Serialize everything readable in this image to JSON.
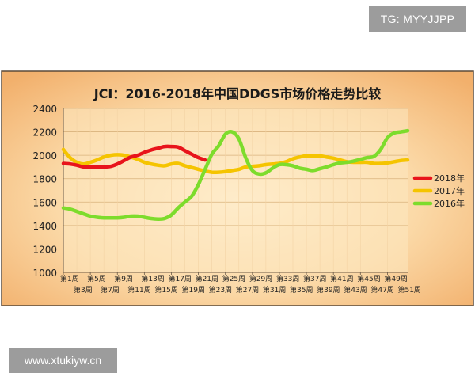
{
  "watermark_top": "TG: MYYJJPP",
  "watermark_bottom": "www.xtukiyw.cn",
  "chart_data": {
    "type": "line",
    "title": "JCI：2016-2018年中国DDGS市场价格走势比较",
    "xlabel": "",
    "ylabel": "",
    "ylim": [
      1000,
      2400
    ],
    "yticks": [
      "1000",
      "1200",
      "1400",
      "1600",
      "1800",
      "2000",
      "2200",
      "2400"
    ],
    "grid": true,
    "legend_position": "right",
    "x_labels_upper": [
      "第1周",
      "第5周",
      "第9周",
      "第13周",
      "第17周",
      "第21周",
      "第25周",
      "第29周",
      "第33周",
      "第37周",
      "第41周",
      "第45周",
      "第49周"
    ],
    "x_labels_lower": [
      "第3周",
      "第7周",
      "第11周",
      "第15周",
      "第19周",
      "第23周",
      "第27周",
      "第31周",
      "第35周",
      "第39周",
      "第43周",
      "第47周",
      "第51周"
    ],
    "colors": {
      "2018年": "#e8141b",
      "2017年": "#f5c400",
      "2016年": "#7ddc2c"
    },
    "series": [
      {
        "name": "2018年",
        "x": [
          1,
          2,
          3,
          4,
          5,
          6,
          7,
          8,
          9,
          10,
          11,
          12,
          13,
          14,
          15,
          16,
          17,
          18,
          19,
          20,
          21,
          22
        ],
        "values": [
          1930,
          1925,
          1915,
          1900,
          1900,
          1900,
          1900,
          1905,
          1925,
          1955,
          1985,
          2000,
          2025,
          2045,
          2060,
          2075,
          2075,
          2070,
          2040,
          2010,
          1980,
          1960
        ]
      },
      {
        "name": "2017年",
        "x": [
          1,
          2,
          3,
          4,
          5,
          6,
          7,
          8,
          9,
          10,
          11,
          12,
          13,
          14,
          15,
          16,
          17,
          18,
          19,
          20,
          21,
          22,
          23,
          24,
          25,
          26,
          27,
          28,
          29,
          30,
          31,
          32,
          33,
          34,
          35,
          36,
          37,
          38,
          39,
          40,
          41,
          42,
          43,
          44,
          45,
          46,
          47,
          48,
          49,
          50,
          51,
          52
        ],
        "values": [
          2050,
          1980,
          1940,
          1925,
          1940,
          1960,
          1985,
          2000,
          2005,
          2000,
          1985,
          1965,
          1940,
          1925,
          1915,
          1910,
          1925,
          1930,
          1910,
          1895,
          1880,
          1865,
          1855,
          1855,
          1860,
          1870,
          1880,
          1900,
          1905,
          1910,
          1920,
          1925,
          1930,
          1945,
          1970,
          1985,
          1995,
          1995,
          1995,
          1985,
          1975,
          1960,
          1945,
          1940,
          1940,
          1940,
          1930,
          1930,
          1935,
          1945,
          1955,
          1960
        ]
      },
      {
        "name": "2016年",
        "x": [
          1,
          2,
          3,
          4,
          5,
          6,
          7,
          8,
          9,
          10,
          11,
          12,
          13,
          14,
          15,
          16,
          17,
          18,
          19,
          20,
          21,
          22,
          23,
          24,
          25,
          26,
          27,
          28,
          29,
          30,
          31,
          32,
          33,
          34,
          35,
          36,
          37,
          38,
          39,
          40,
          41,
          42,
          43,
          44,
          45,
          46,
          47,
          48,
          49,
          50,
          51,
          52
        ],
        "values": [
          1550,
          1540,
          1520,
          1500,
          1480,
          1470,
          1465,
          1465,
          1465,
          1470,
          1480,
          1480,
          1470,
          1460,
          1455,
          1460,
          1490,
          1550,
          1600,
          1650,
          1750,
          1880,
          2010,
          2080,
          2180,
          2200,
          2140,
          1980,
          1870,
          1840,
          1850,
          1890,
          1920,
          1920,
          1910,
          1890,
          1880,
          1870,
          1885,
          1900,
          1920,
          1935,
          1940,
          1950,
          1965,
          1980,
          1990,
          2050,
          2150,
          2190,
          2200,
          2210
        ]
      }
    ]
  }
}
